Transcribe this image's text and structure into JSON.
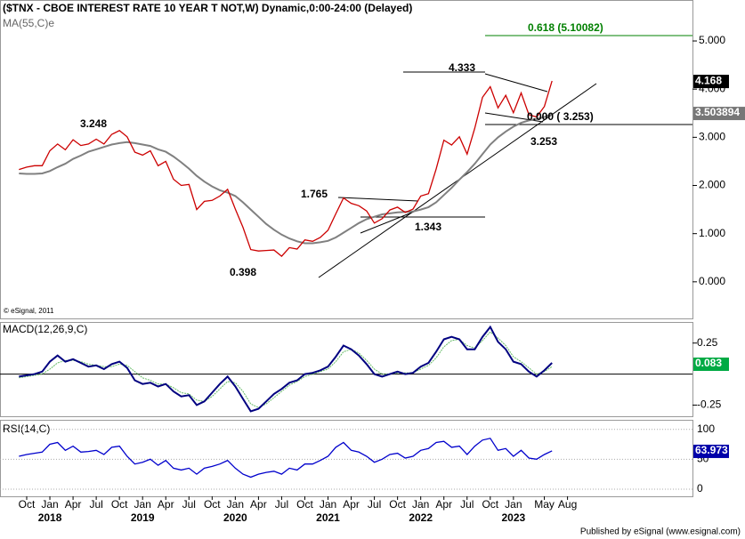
{
  "chart_data": {
    "type": "line",
    "title": "($TNX - CBOE INTEREST RATE 10 YEAR T NOT,W) Dynamic,0:00-24:00 (Delayed)",
    "ma_label": "MA(55,C)e",
    "copyright": "© eSignal, 2011",
    "footer": "Published by eSignal (www.esignal.com)",
    "categories": [
      "2017-09",
      "2017-10",
      "2017-11",
      "2017-12",
      "2018-01",
      "2018-02",
      "2018-03",
      "2018-04",
      "2018-05",
      "2018-06",
      "2018-07",
      "2018-08",
      "2018-09",
      "2018-10",
      "2018-11",
      "2018-12",
      "2019-01",
      "2019-02",
      "2019-03",
      "2019-04",
      "2019-05",
      "2019-06",
      "2019-07",
      "2019-08",
      "2019-09",
      "2019-10",
      "2019-11",
      "2019-12",
      "2020-01",
      "2020-02",
      "2020-03",
      "2020-04",
      "2020-05",
      "2020-06",
      "2020-07",
      "2020-08",
      "2020-09",
      "2020-10",
      "2020-11",
      "2020-12",
      "2021-01",
      "2021-02",
      "2021-03",
      "2021-04",
      "2021-05",
      "2021-06",
      "2021-07",
      "2021-08",
      "2021-09",
      "2021-10",
      "2021-11",
      "2021-12",
      "2022-01",
      "2022-02",
      "2022-03",
      "2022-04",
      "2022-05",
      "2022-06",
      "2022-07",
      "2022-08",
      "2022-09",
      "2022-10",
      "2022-11",
      "2022-12",
      "2023-01",
      "2023-02",
      "2023-03",
      "2023-04",
      "2023-05",
      "2023-06"
    ],
    "series": [
      {
        "name": "$TNX",
        "color": "#cc0000",
        "values": [
          2.33,
          2.38,
          2.41,
          2.41,
          2.72,
          2.86,
          2.74,
          2.95,
          2.83,
          2.86,
          2.96,
          2.86,
          3.06,
          3.14,
          3.01,
          2.69,
          2.63,
          2.72,
          2.41,
          2.5,
          2.13,
          2.0,
          2.02,
          1.5,
          1.67,
          1.69,
          1.78,
          1.92,
          1.51,
          1.13,
          0.67,
          0.64,
          0.65,
          0.66,
          0.53,
          0.71,
          0.68,
          0.87,
          0.84,
          0.92,
          1.07,
          1.41,
          1.74,
          1.63,
          1.58,
          1.47,
          1.22,
          1.31,
          1.49,
          1.55,
          1.44,
          1.51,
          1.78,
          1.83,
          2.34,
          2.94,
          2.84,
          3.01,
          2.65,
          3.19,
          3.83,
          4.05,
          3.61,
          3.87,
          3.51,
          3.92,
          3.47,
          3.42,
          3.64,
          4.17
        ]
      },
      {
        "name": "MA(55,C)e",
        "color": "#808080",
        "values": [
          2.25,
          2.24,
          2.24,
          2.25,
          2.3,
          2.38,
          2.45,
          2.55,
          2.62,
          2.7,
          2.75,
          2.8,
          2.85,
          2.88,
          2.9,
          2.88,
          2.85,
          2.82,
          2.75,
          2.7,
          2.6,
          2.48,
          2.35,
          2.2,
          2.08,
          1.98,
          1.9,
          1.85,
          1.78,
          1.65,
          1.5,
          1.35,
          1.2,
          1.08,
          0.98,
          0.9,
          0.84,
          0.8,
          0.8,
          0.82,
          0.85,
          0.92,
          1.02,
          1.12,
          1.22,
          1.3,
          1.35,
          1.4,
          1.42,
          1.44,
          1.45,
          1.46,
          1.5,
          1.55,
          1.65,
          1.8,
          1.95,
          2.12,
          2.28,
          2.45,
          2.65,
          2.85,
          3.0,
          3.12,
          3.22,
          3.3,
          3.35,
          3.38,
          3.42,
          3.48
        ]
      }
    ],
    "ylim": [
      -0.76,
      5.85
    ],
    "yticks": [
      {
        "value": 5,
        "label": "5.000"
      },
      {
        "value": 4,
        "label": "4.000"
      },
      {
        "value": 3,
        "label": "3.000"
      },
      {
        "value": 2,
        "label": "2.000"
      },
      {
        "value": 1,
        "label": "1.000"
      },
      {
        "value": 0,
        "label": "0.000"
      }
    ],
    "last_price": {
      "value": 4.168,
      "label": "4.168"
    },
    "last_ma": 3.503894,
    "annotations": [
      "3.248",
      "0.398",
      "1.765",
      "1.343",
      "4.333",
      "3.253",
      "0.000 ( 3.253)",
      "0.618 (5.10082)"
    ],
    "macd": {
      "label": "MACD(12,26,9,C)",
      "series": [
        {
          "name": "MACD",
          "color": "#000080",
          "values": [
            -0.02,
            -0.01,
            0.0,
            0.02,
            0.1,
            0.15,
            0.1,
            0.12,
            0.09,
            0.06,
            0.07,
            0.04,
            0.08,
            0.1,
            0.05,
            -0.05,
            -0.08,
            -0.07,
            -0.1,
            -0.08,
            -0.14,
            -0.18,
            -0.17,
            -0.25,
            -0.22,
            -0.15,
            -0.08,
            -0.02,
            -0.1,
            -0.2,
            -0.3,
            -0.28,
            -0.22,
            -0.16,
            -0.12,
            -0.07,
            -0.05,
            0.0,
            0.01,
            0.03,
            0.06,
            0.14,
            0.23,
            0.2,
            0.15,
            0.08,
            0.0,
            -0.02,
            0.0,
            0.02,
            0.0,
            0.01,
            0.06,
            0.09,
            0.18,
            0.28,
            0.3,
            0.28,
            0.2,
            0.2,
            0.3,
            0.38,
            0.26,
            0.2,
            0.1,
            0.08,
            0.02,
            -0.02,
            0.03,
            0.09
          ]
        },
        {
          "name": "Signal",
          "color": "#66bb66",
          "values": [
            -0.03,
            -0.02,
            -0.01,
            0.0,
            0.04,
            0.09,
            0.11,
            0.11,
            0.1,
            0.08,
            0.07,
            0.06,
            0.06,
            0.08,
            0.07,
            0.02,
            -0.03,
            -0.05,
            -0.08,
            -0.08,
            -0.11,
            -0.15,
            -0.16,
            -0.21,
            -0.22,
            -0.18,
            -0.12,
            -0.06,
            -0.07,
            -0.14,
            -0.24,
            -0.27,
            -0.24,
            -0.19,
            -0.14,
            -0.09,
            -0.06,
            -0.02,
            0.0,
            0.02,
            0.04,
            0.1,
            0.18,
            0.2,
            0.17,
            0.11,
            0.04,
            0.0,
            0.0,
            0.01,
            0.01,
            0.01,
            0.04,
            0.07,
            0.13,
            0.22,
            0.27,
            0.28,
            0.23,
            0.21,
            0.27,
            0.34,
            0.29,
            0.23,
            0.14,
            0.1,
            0.05,
            0.0,
            0.02,
            0.06
          ]
        }
      ],
      "ylim": [
        -0.34,
        0.42
      ],
      "yticks": [
        0.25,
        -0.25
      ],
      "last": 0.083
    },
    "rsi": {
      "label": "RSI(14,C)",
      "color": "#0000cc",
      "values": [
        55,
        58,
        60,
        62,
        75,
        78,
        65,
        72,
        62,
        63,
        65,
        58,
        70,
        72,
        55,
        42,
        45,
        50,
        40,
        48,
        35,
        32,
        35,
        25,
        35,
        38,
        42,
        48,
        35,
        25,
        20,
        25,
        28,
        30,
        25,
        35,
        32,
        42,
        42,
        48,
        55,
        70,
        78,
        65,
        62,
        55,
        45,
        50,
        58,
        60,
        52,
        55,
        65,
        68,
        78,
        80,
        70,
        72,
        58,
        72,
        82,
        85,
        65,
        68,
        55,
        65,
        52,
        50,
        58,
        64
      ],
      "ylim": [
        -12,
        116
      ],
      "yticks": [
        100,
        50,
        0
      ],
      "last": 63.973
    },
    "xticks": [
      {
        "value": "2017-10",
        "label": "Oct"
      },
      {
        "value": "2018-01",
        "label": "Jan"
      },
      {
        "value": "2018-04",
        "label": "Apr"
      },
      {
        "value": "2018-07",
        "label": "Jul"
      },
      {
        "value": "2018-10",
        "label": "Oct"
      },
      {
        "value": "2019-01",
        "label": "Jan"
      },
      {
        "value": "2019-04",
        "label": "Apr"
      },
      {
        "value": "2019-07",
        "label": "Jul"
      },
      {
        "value": "2019-10",
        "label": "Oct"
      },
      {
        "value": "2020-01",
        "label": "Jan"
      },
      {
        "value": "2020-04",
        "label": "Apr"
      },
      {
        "value": "2020-07",
        "label": "Jul"
      },
      {
        "value": "2020-10",
        "label": "Oct"
      },
      {
        "value": "2021-01",
        "label": "Jan"
      },
      {
        "value": "2021-04",
        "label": "Apr"
      },
      {
        "value": "2021-07",
        "label": "Jul"
      },
      {
        "value": "2021-10",
        "label": "Oct"
      },
      {
        "value": "2022-01",
        "label": "Jan"
      },
      {
        "value": "2022-04",
        "label": "Apr"
      },
      {
        "value": "2022-07",
        "label": "Jul"
      },
      {
        "value": "2022-10",
        "label": "Oct"
      },
      {
        "value": "2023-01",
        "label": "Jan"
      },
      {
        "value": "2023-05",
        "label": "May"
      },
      {
        "value": "2023-08",
        "label": "Aug"
      }
    ],
    "year_ticks": [
      {
        "value": "2018-01",
        "label": "2018"
      },
      {
        "value": "2019-01",
        "label": "2019"
      },
      {
        "value": "2020-01",
        "label": "2020"
      },
      {
        "value": "2021-01",
        "label": "2021"
      },
      {
        "value": "2022-01",
        "label": "2022"
      },
      {
        "value": "2023-01",
        "label": "2023"
      }
    ]
  }
}
